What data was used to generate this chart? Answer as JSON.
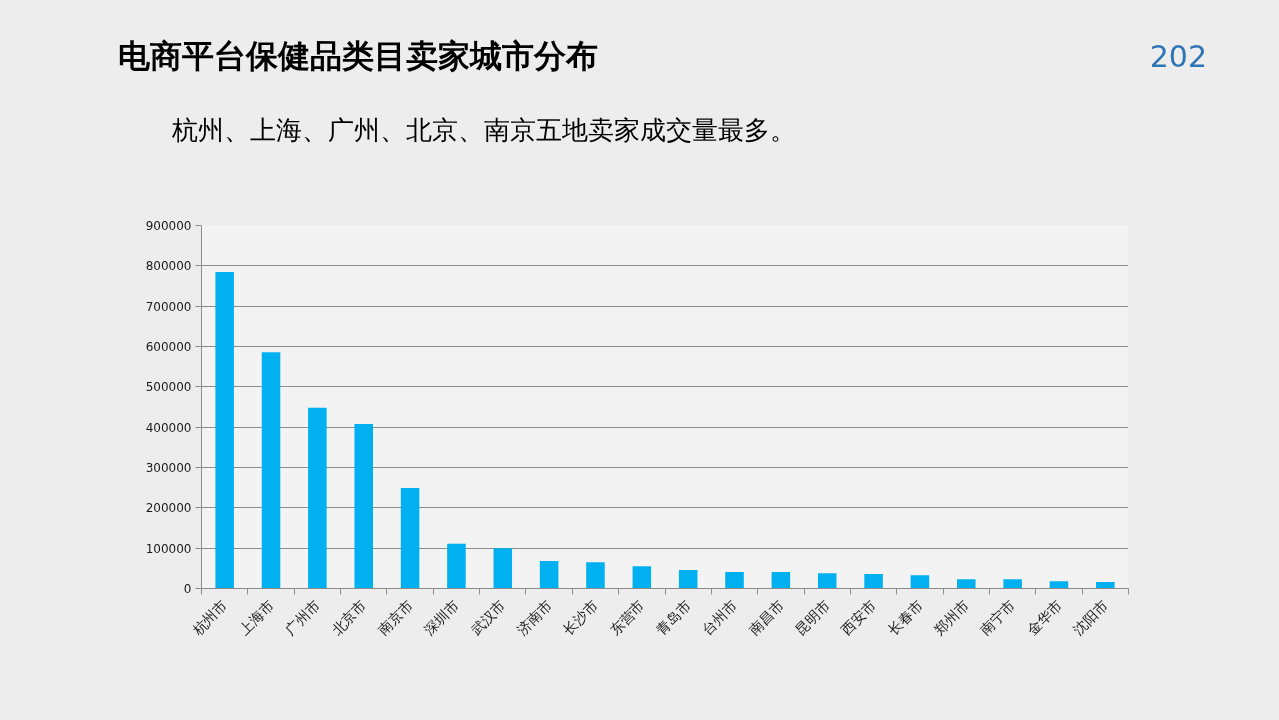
{
  "chart_data": {
    "type": "bar",
    "title": "电商平台保健品类目卖家城市分布",
    "subtitle": "杭州、上海、广州、北京、南京五地卖家成交量最多。",
    "annotations": [
      "202"
    ],
    "categories": [
      "杭州市",
      "上海市",
      "广州市",
      "北京市",
      "南京市",
      "深圳市",
      "武汉市",
      "济南市",
      "长沙市",
      "东营市",
      "青岛市",
      "台州市",
      "南昌市",
      "昆明市",
      "西安市",
      "长春市",
      "郑州市",
      "南宁市",
      "金华市",
      "沈阳市"
    ],
    "values": [
      785000,
      586000,
      448000,
      408000,
      249000,
      111000,
      100000,
      68000,
      65000,
      55000,
      46000,
      41000,
      41000,
      38000,
      36000,
      33000,
      23000,
      23000,
      18000,
      16000
    ],
    "color": "#00b0f0",
    "ylim": [
      0,
      900000
    ],
    "yticks": [
      0,
      100000,
      200000,
      300000,
      400000,
      500000,
      600000,
      700000,
      800000,
      900000
    ],
    "grid": "y"
  }
}
